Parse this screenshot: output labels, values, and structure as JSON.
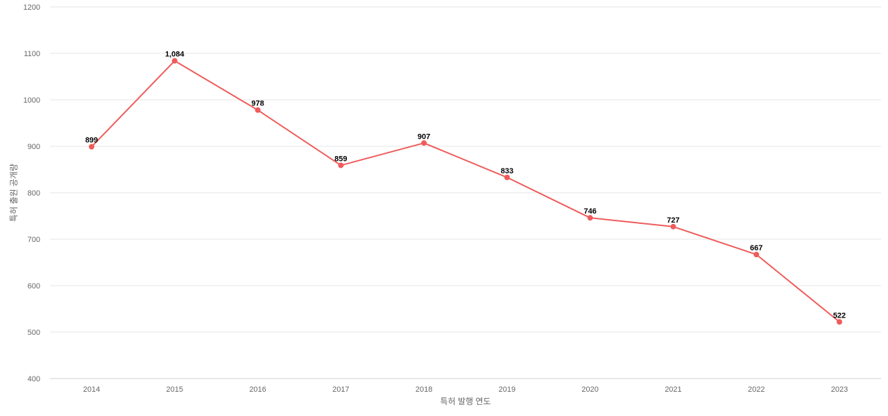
{
  "chart_data": {
    "type": "line",
    "x": [
      "2014",
      "2015",
      "2016",
      "2017",
      "2018",
      "2019",
      "2020",
      "2021",
      "2022",
      "2023"
    ],
    "series": [
      {
        "values": [
          899,
          1084,
          978,
          859,
          907,
          833,
          746,
          727,
          667,
          522
        ],
        "data_labels": [
          "899",
          "1,084",
          "978",
          "859",
          "907",
          "833",
          "746",
          "727",
          "667",
          "522"
        ],
        "color": "#ef5b5b"
      }
    ],
    "xlabel": "특허 발행 연도",
    "ylabel": "특허 출원 공개량",
    "ylim": [
      400,
      1200
    ],
    "yticks": [
      "400",
      "500",
      "600",
      "700",
      "800",
      "900",
      "1000",
      "1100",
      "1200"
    ],
    "grid": true,
    "legend": "none"
  }
}
